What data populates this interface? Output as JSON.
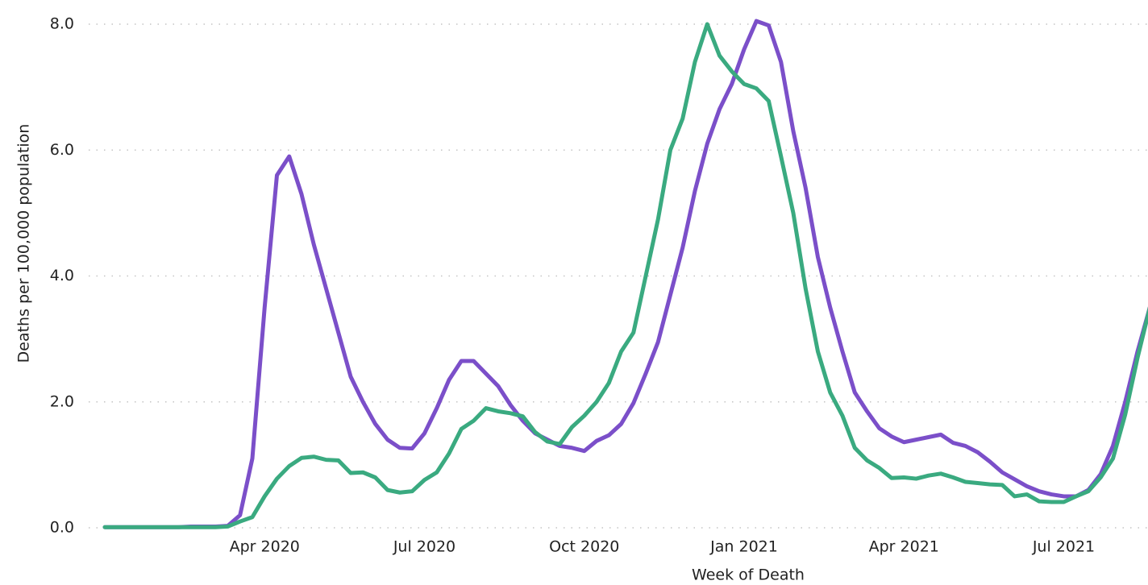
{
  "chart_data": {
    "type": "line",
    "y_label": "Deaths per 100,000 population",
    "x_label": "Week of Death",
    "categories": [
      null,
      null,
      null,
      null,
      null,
      null,
      null,
      null,
      null,
      null,
      null,
      null,
      null,
      "Apr 2020",
      null,
      null,
      null,
      null,
      null,
      null,
      null,
      null,
      null,
      null,
      null,
      null,
      "Jul 2020",
      null,
      null,
      null,
      null,
      null,
      null,
      null,
      null,
      null,
      null,
      null,
      null,
      "Oct 2020",
      null,
      null,
      null,
      null,
      null,
      null,
      null,
      null,
      null,
      null,
      null,
      null,
      "Jan 2021",
      null,
      null,
      null,
      null,
      null,
      null,
      null,
      null,
      null,
      null,
      null,
      null,
      "Apr 2021",
      null,
      null,
      null,
      null,
      null,
      null,
      null,
      null,
      null,
      null,
      null,
      null,
      "Jul 2021",
      null,
      null,
      null,
      null,
      null,
      null,
      null
    ],
    "series": [
      {
        "color": "#7b4fc9",
        "values": [
          0.01,
          0.01,
          0.01,
          0.01,
          0.01,
          0.01,
          0.01,
          0.02,
          0.02,
          0.02,
          0.03,
          0.2,
          1.1,
          3.5,
          5.6,
          5.9,
          5.3,
          4.5,
          3.8,
          3.1,
          2.4,
          2.0,
          1.65,
          1.4,
          1.27,
          1.26,
          1.5,
          1.9,
          2.35,
          2.65,
          2.65,
          2.45,
          2.25,
          1.95,
          1.7,
          1.5,
          1.4,
          1.3,
          1.27,
          1.22,
          1.38,
          1.47,
          1.65,
          1.98,
          2.45,
          2.95,
          3.7,
          4.45,
          5.35,
          6.1,
          6.65,
          7.05,
          7.6,
          8.05,
          7.98,
          7.4,
          6.3,
          5.4,
          4.3,
          3.5,
          2.8,
          2.15,
          1.85,
          1.58,
          1.45,
          1.36,
          1.4,
          1.44,
          1.48,
          1.35,
          1.3,
          1.2,
          1.05,
          0.88,
          0.77,
          0.66,
          0.58,
          0.53,
          0.5,
          0.5,
          0.6,
          0.85,
          1.3,
          2.0,
          2.8,
          3.5
        ]
      },
      {
        "color": "#3aaa80",
        "values": [
          0.01,
          0.01,
          0.01,
          0.01,
          0.01,
          0.01,
          0.01,
          0.01,
          0.01,
          0.01,
          0.02,
          0.1,
          0.17,
          0.5,
          0.78,
          0.98,
          1.11,
          1.13,
          1.08,
          1.07,
          0.87,
          0.88,
          0.8,
          0.6,
          0.56,
          0.58,
          0.76,
          0.88,
          1.18,
          1.57,
          1.7,
          1.9,
          1.85,
          1.82,
          1.77,
          1.52,
          1.37,
          1.33,
          1.6,
          1.78,
          2.0,
          2.3,
          2.8,
          3.1,
          4.0,
          4.9,
          6.0,
          6.5,
          7.4,
          8.0,
          7.5,
          7.25,
          7.05,
          6.98,
          6.78,
          5.9,
          5.0,
          3.8,
          2.8,
          2.15,
          1.78,
          1.27,
          1.07,
          0.95,
          0.79,
          0.8,
          0.78,
          0.83,
          0.86,
          0.8,
          0.73,
          0.71,
          0.69,
          0.68,
          0.5,
          0.53,
          0.42,
          0.41,
          0.41,
          0.5,
          0.58,
          0.8,
          1.1,
          1.8,
          2.7,
          3.5
        ]
      }
    ],
    "ylim": [
      0,
      8.1
    ],
    "yticks": [
      {
        "value": 0,
        "label": "0.0"
      },
      {
        "value": 2,
        "label": "2.0"
      },
      {
        "value": 4,
        "label": "4.0"
      },
      {
        "value": 6,
        "label": "6.0"
      },
      {
        "value": 8,
        "label": "8.0"
      }
    ],
    "grid": true
  }
}
